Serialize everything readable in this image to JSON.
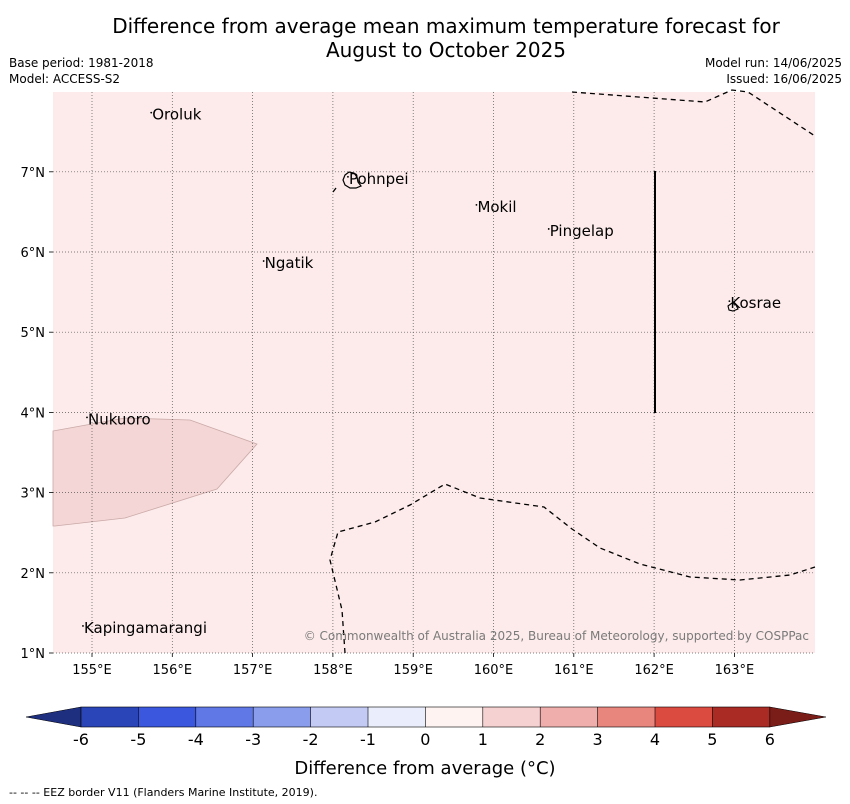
{
  "title": {
    "line1": "Difference from average mean maximum temperature forecast for",
    "line2": "August to October 2025"
  },
  "meta": {
    "base_period": "Base period: 1981-2018",
    "model": "Model: ACCESS-S2",
    "model_run": "Model run: 14/06/2025",
    "issued": "Issued: 16/06/2025"
  },
  "axes": {
    "lon_ticks": [
      "155°E",
      "156°E",
      "157°E",
      "158°E",
      "159°E",
      "160°E",
      "161°E",
      "162°E",
      "163°E"
    ],
    "lat_ticks": [
      "1°N",
      "2°N",
      "3°N",
      "4°N",
      "5°N",
      "6°N",
      "7°N"
    ]
  },
  "places": [
    {
      "name": "Oroluk",
      "lon": 155.75,
      "lat": 7.65
    },
    {
      "name": "Pohnpei",
      "lon": 158.2,
      "lat": 6.85
    },
    {
      "name": "Mokil",
      "lon": 159.8,
      "lat": 6.5
    },
    {
      "name": "Pingelap",
      "lon": 160.7,
      "lat": 6.2
    },
    {
      "name": "Ngatik",
      "lon": 157.15,
      "lat": 5.8
    },
    {
      "name": "Kosrae",
      "lon": 162.95,
      "lat": 5.3
    },
    {
      "name": "Nukuoro",
      "lon": 154.95,
      "lat": 3.85
    },
    {
      "name": "Kapingamarangi",
      "lon": 154.9,
      "lat": 1.25
    }
  ],
  "copyright": "© Commonwealth of Australia 2025, Bureau of Meteorology, supported by COSPPac",
  "colorbar": {
    "label": "Difference from average (°C)",
    "ticks": [
      "-6",
      "-5",
      "-4",
      "-3",
      "-2",
      "-1",
      "0",
      "1",
      "2",
      "3",
      "4",
      "5",
      "6"
    ],
    "colors": {
      "under": "#1f2f80",
      "bins": [
        "#2a45b8",
        "#3a57de",
        "#5f78e6",
        "#8a9ded",
        "#c3cbf5",
        "#eaedfc",
        "#fff3f1",
        "#f5d2d1",
        "#efaeab",
        "#e8857d",
        "#dc4b40",
        "#aa2a24"
      ],
      "over": "#7a1c18"
    }
  },
  "map_colors": {
    "background": "#fcebea",
    "anomaly_patch": "#f3d6d5"
  },
  "footnote": "--  --  -- EEZ border V11 (Flanders Marine Institute, 2019)."
}
